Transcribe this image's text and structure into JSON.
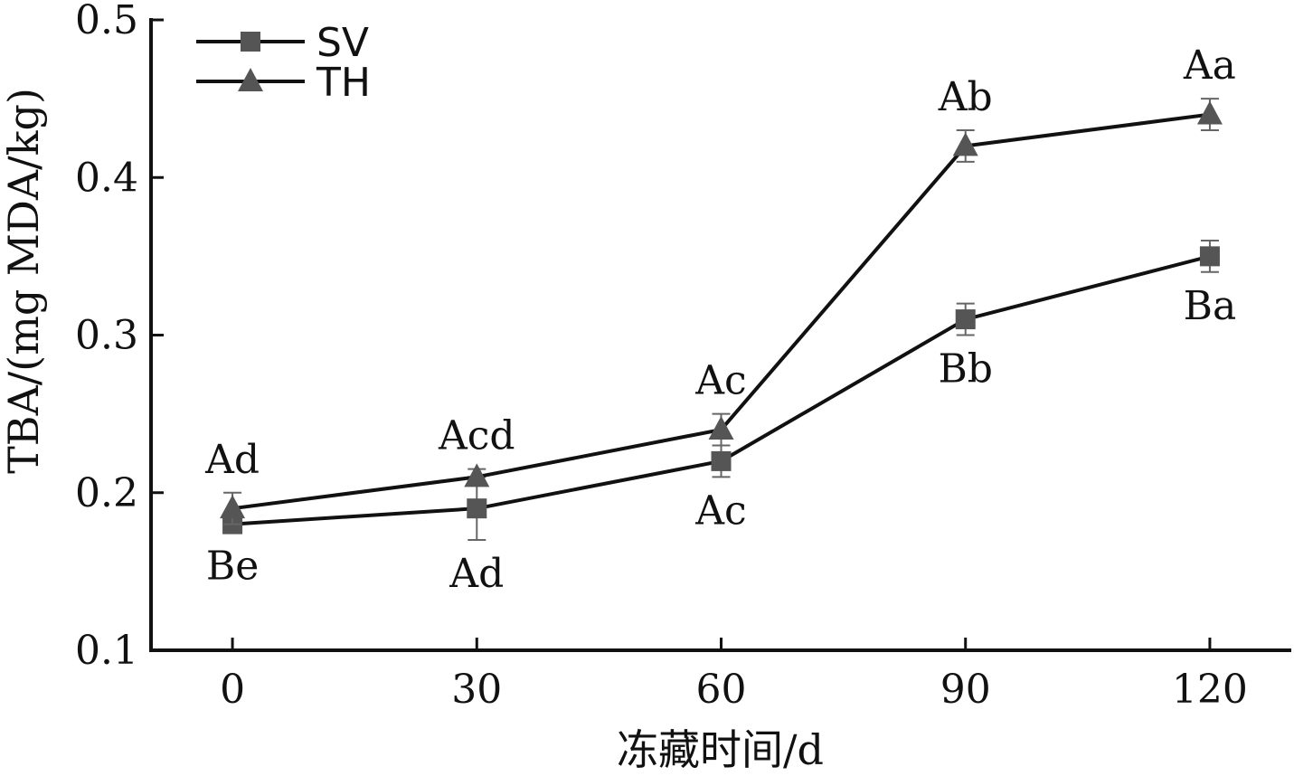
{
  "chart_data": {
    "type": "line",
    "xlabel": "冻藏时间/d",
    "ylabel": "TBA/(mg MDA/kg)",
    "x": [
      0,
      30,
      60,
      90,
      120
    ],
    "xticks": [
      "0",
      "30",
      "60",
      "90",
      "120"
    ],
    "xlim": [
      -10,
      130
    ],
    "ylim": [
      0.1,
      0.5
    ],
    "yticks": [
      "0.1",
      "0.2",
      "0.3",
      "0.4",
      "0.5"
    ],
    "grid": false,
    "legend_position": "top-left",
    "series": [
      {
        "name": "SV",
        "marker": "square",
        "color": "#555555",
        "values": [
          0.18,
          0.19,
          0.22,
          0.31,
          0.35
        ],
        "errors": [
          0.005,
          0.02,
          0.01,
          0.01,
          0.01
        ],
        "labels": [
          "Be",
          "Ad",
          "Ac",
          "Bb",
          "Ba"
        ],
        "label_side": [
          "below",
          "below",
          "below",
          "below",
          "below"
        ]
      },
      {
        "name": "TH",
        "marker": "triangle",
        "color": "#555555",
        "values": [
          0.19,
          0.21,
          0.24,
          0.42,
          0.44
        ],
        "errors": [
          0.01,
          0.005,
          0.01,
          0.01,
          0.01
        ],
        "labels": [
          "Ad",
          "Acd",
          "Ac",
          "Ab",
          "Aa"
        ],
        "label_side": [
          "above",
          "above",
          "above",
          "above",
          "above"
        ]
      }
    ]
  }
}
